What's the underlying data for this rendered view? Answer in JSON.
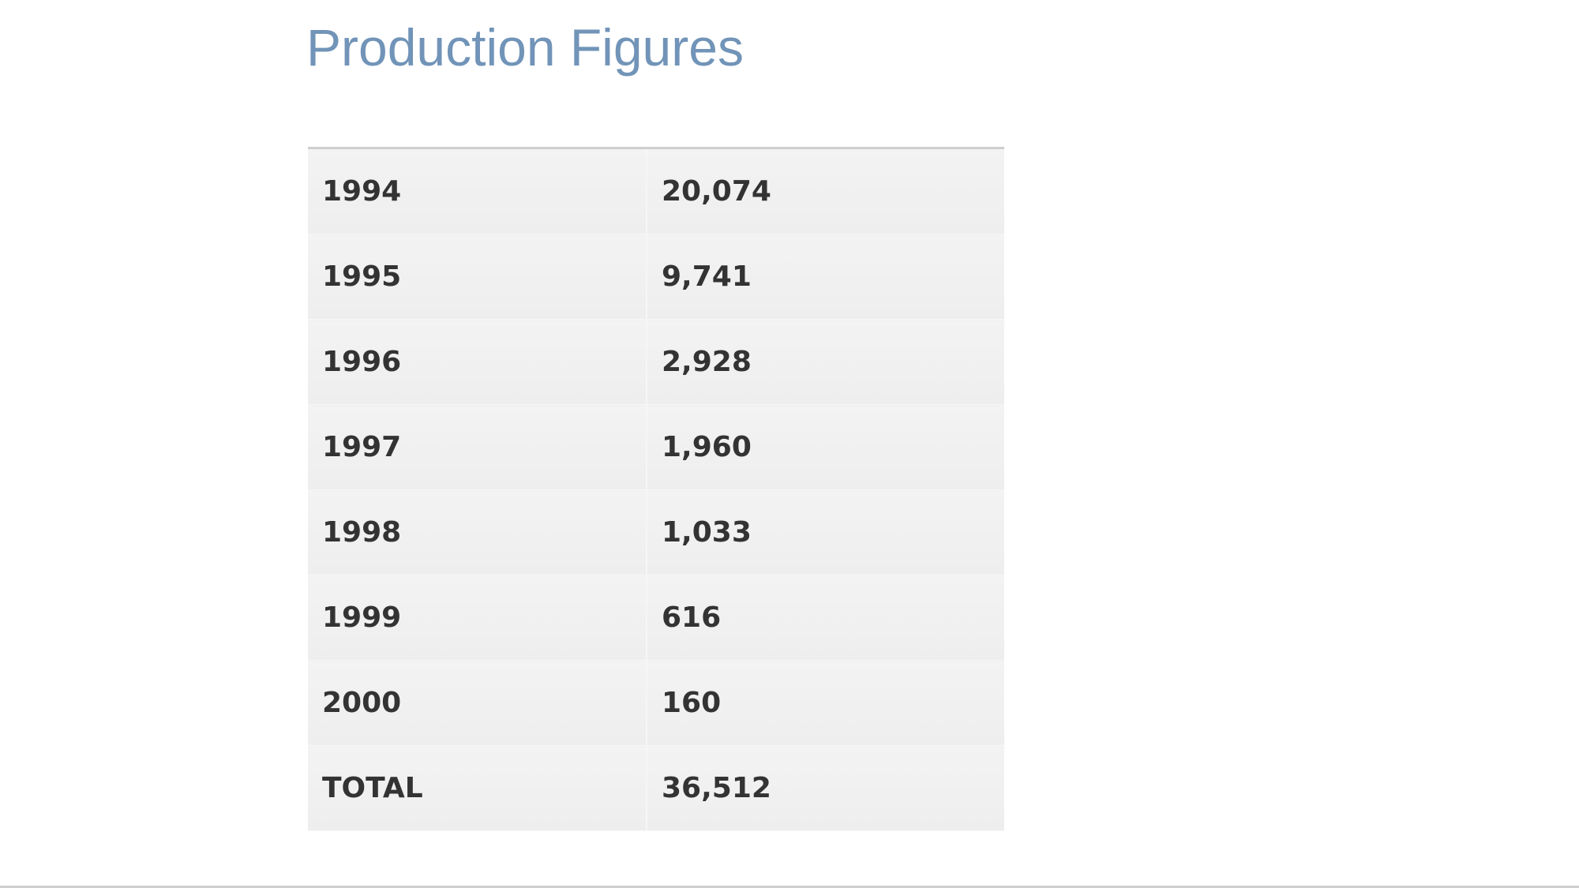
{
  "title": "Production Figures",
  "table": {
    "rows": [
      [
        "1994",
        "20,074"
      ],
      [
        "1995",
        "9,741"
      ],
      [
        "1996",
        "2,928"
      ],
      [
        "1997",
        "1,960"
      ],
      [
        "1998",
        "1,033"
      ],
      [
        "1999",
        "616"
      ],
      [
        "2000",
        "160"
      ],
      [
        "TOTAL",
        "36,512"
      ]
    ]
  }
}
